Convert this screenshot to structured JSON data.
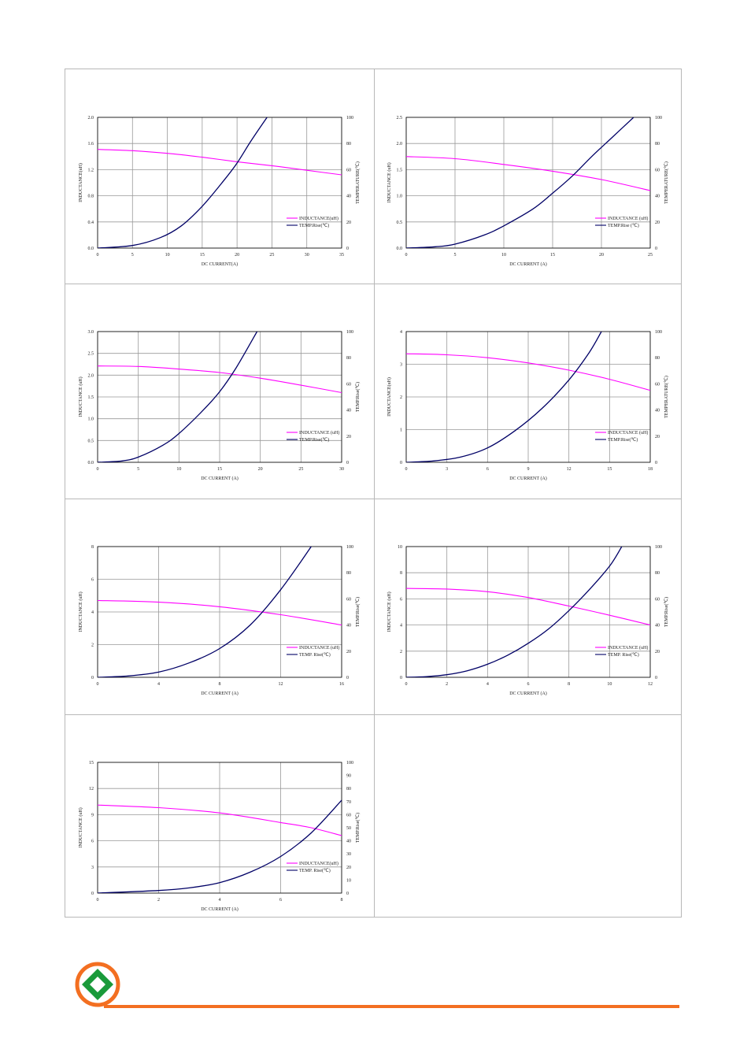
{
  "colors": {
    "inductance": "#ff00ff",
    "temp": "#000066",
    "grid": "#999999",
    "footer_rule": "#f36f21",
    "logo_ring": "#f36f21",
    "logo_mark": "#1a9a3a"
  },
  "chart_data": [
    {
      "type": "line",
      "xlabel": "DC CURRENT(A)",
      "ylabel": "INDUCTANCE(uH)",
      "y2label": "TEMPERATURE(℃)",
      "xlim": [
        0,
        35
      ],
      "xticks": [
        "0",
        "5",
        "10",
        "15",
        "20",
        "25",
        "30",
        "35"
      ],
      "ylim": [
        0,
        2.0
      ],
      "yticks": [
        "0.0",
        "0.4",
        "0.8",
        "1.2",
        "1.6",
        "2.0"
      ],
      "y2lim": [
        0,
        100
      ],
      "y2ticks": [
        "0",
        "20",
        "40",
        "60",
        "80",
        "100"
      ],
      "legend": "bottom-right",
      "series": [
        {
          "name": "INDUCTANCE(uH)",
          "axis": "left",
          "x": [
            0,
            5,
            10,
            15,
            20,
            25,
            30,
            35
          ],
          "values": [
            1.51,
            1.49,
            1.45,
            1.39,
            1.32,
            1.26,
            1.19,
            1.12
          ]
        },
        {
          "name": "TEMP.Rise(℃)",
          "axis": "right",
          "x": [
            0,
            5,
            9,
            12,
            15,
            18,
            20,
            22,
            24.3
          ],
          "values": [
            0,
            2,
            8,
            17,
            32,
            51,
            65,
            82,
            100
          ]
        }
      ]
    },
    {
      "type": "line",
      "xlabel": "DC CURRENT (A)",
      "ylabel": "INDUCTANCE (uH)",
      "y2label": "TEMPERATURE(℃)",
      "xlim": [
        0,
        25
      ],
      "xticks": [
        "0",
        "5",
        "10",
        "15",
        "20",
        "25"
      ],
      "ylim": [
        0,
        2.5
      ],
      "yticks": [
        "0.0",
        "0.5",
        "1.0",
        "1.5",
        "2.0",
        "2.5"
      ],
      "y2lim": [
        0,
        100
      ],
      "y2ticks": [
        "0",
        "20",
        "40",
        "60",
        "80",
        "100"
      ],
      "legend": "bottom-right",
      "series": [
        {
          "name": "INDUCTANCE (uH)",
          "axis": "left",
          "x": [
            0,
            5,
            10,
            15,
            20,
            25
          ],
          "values": [
            1.75,
            1.71,
            1.6,
            1.47,
            1.31,
            1.1
          ]
        },
        {
          "name": "TEMP.Rise (℃)",
          "axis": "right",
          "x": [
            0,
            3,
            5,
            8,
            10,
            13,
            15,
            17,
            19,
            21,
            23.3
          ],
          "values": [
            0,
            1,
            3,
            10,
            17,
            30,
            42,
            55,
            70,
            84,
            100
          ]
        }
      ]
    },
    {
      "type": "line",
      "xlabel": "DC CURRENT (A)",
      "ylabel": "INDUCTANCE (uH)",
      "y2label": "TEMP.Rise(℃)",
      "xlim": [
        0,
        30
      ],
      "xticks": [
        "0",
        "5",
        "10",
        "15",
        "20",
        "25",
        "30"
      ],
      "ylim": [
        0,
        3.0
      ],
      "yticks": [
        "0.0",
        "0.5",
        "1.0",
        "1.5",
        "2.0",
        "2.5",
        "3.0"
      ],
      "y2lim": [
        0,
        100
      ],
      "y2ticks": [
        "0",
        "20",
        "40",
        "60",
        "80",
        "100"
      ],
      "legend": "bottom-right",
      "series": [
        {
          "name": "INDUCTANCE (uH)",
          "axis": "left",
          "x": [
            0,
            5,
            10,
            15,
            20,
            25,
            30
          ],
          "values": [
            2.21,
            2.2,
            2.14,
            2.06,
            1.93,
            1.77,
            1.6
          ]
        },
        {
          "name": "TEMP.Rise(℃)",
          "axis": "right",
          "x": [
            0,
            3,
            5,
            8,
            10,
            13,
            15,
            17,
            19.6
          ],
          "values": [
            0,
            1,
            4,
            13,
            22,
            40,
            54,
            72,
            100
          ]
        }
      ]
    },
    {
      "type": "line",
      "xlabel": "DC CURRENT (A)",
      "ylabel": "INDUCTANCE(uH)",
      "y2label": "TEMPERATURE(℃)",
      "xlim": [
        0,
        18
      ],
      "xticks": [
        "0",
        "3",
        "6",
        "9",
        "12",
        "15",
        "18"
      ],
      "ylim": [
        0,
        4
      ],
      "yticks": [
        "0",
        "1",
        "2",
        "3",
        "4"
      ],
      "y2lim": [
        0,
        100
      ],
      "y2ticks": [
        "0",
        "20",
        "40",
        "60",
        "80",
        "100"
      ],
      "legend": "bottom-right",
      "series": [
        {
          "name": "INDUCTANCE (uH)",
          "axis": "left",
          "x": [
            0,
            3,
            6,
            9,
            12,
            15,
            18
          ],
          "values": [
            3.32,
            3.29,
            3.2,
            3.04,
            2.82,
            2.54,
            2.2
          ]
        },
        {
          "name": "TEMP.Rise(℃)",
          "axis": "right",
          "x": [
            0,
            2,
            4,
            6,
            8,
            10,
            12,
            13.5,
            14.4
          ],
          "values": [
            0,
            1,
            4,
            11,
            24,
            41,
            63,
            84,
            100
          ]
        }
      ]
    },
    {
      "type": "line",
      "xlabel": "DC CURRENT (A)",
      "ylabel": "INDUCTANCE (uH)",
      "y2label": "TEMP.Rise(℃)",
      "xlim": [
        0,
        16
      ],
      "xticks": [
        "0",
        "4",
        "8",
        "12",
        "16"
      ],
      "ylim": [
        0,
        8
      ],
      "yticks": [
        "0",
        "2",
        "4",
        "6",
        "8"
      ],
      "y2lim": [
        0,
        100
      ],
      "y2ticks": [
        "0",
        "20",
        "40",
        "60",
        "80",
        "100"
      ],
      "legend": "bottom-right",
      "series": [
        {
          "name": "INDUCTANCE (uH)",
          "axis": "left",
          "x": [
            0,
            4,
            8,
            12,
            16
          ],
          "values": [
            4.7,
            4.6,
            4.32,
            3.83,
            3.2
          ]
        },
        {
          "name": "TEMP. Rise(℃)",
          "axis": "right",
          "x": [
            0,
            2,
            4,
            6,
            8,
            10,
            12,
            14,
            13.9
          ],
          "values": [
            0,
            1,
            4,
            11,
            22,
            40,
            67,
            100,
            100
          ]
        }
      ]
    },
    {
      "type": "line",
      "xlabel": "DC CURRENT (A)",
      "ylabel": "INDUCTANCE (uH)",
      "y2label": "TEMP.Rise(℃)",
      "xlim": [
        0,
        12
      ],
      "xticks": [
        "0",
        "2",
        "4",
        "6",
        "8",
        "10",
        "12"
      ],
      "ylim": [
        0,
        10
      ],
      "yticks": [
        "0",
        "2",
        "4",
        "6",
        "8",
        "10"
      ],
      "y2lim": [
        0,
        100
      ],
      "y2ticks": [
        "0",
        "20",
        "40",
        "60",
        "80",
        "100"
      ],
      "legend": "bottom-right",
      "series": [
        {
          "name": "INDUCTANCE (uH)",
          "axis": "left",
          "x": [
            0,
            2,
            4,
            6,
            8,
            10,
            12
          ],
          "values": [
            6.8,
            6.75,
            6.55,
            6.1,
            5.45,
            4.75,
            4.0
          ]
        },
        {
          "name": "TEMP. Rise(℃)",
          "axis": "right",
          "x": [
            0,
            1,
            2,
            3,
            4,
            5,
            6,
            7,
            8,
            9,
            10,
            10.6
          ],
          "values": [
            0,
            0.5,
            2,
            5,
            10,
            17,
            26,
            37,
            51,
            67,
            85,
            100
          ]
        }
      ]
    },
    {
      "type": "line",
      "xlabel": "DC CURRENT (A)",
      "ylabel": "INDUCTANCE (uH)",
      "y2label": "TEMP.Rise(℃)",
      "xlim": [
        0,
        8
      ],
      "xticks": [
        "0",
        "2",
        "4",
        "6",
        "8"
      ],
      "ylim": [
        0,
        15
      ],
      "yticks": [
        "0",
        "3",
        "6",
        "9",
        "12",
        "15"
      ],
      "y2lim": [
        0,
        100
      ],
      "y2ticks": [
        "0",
        "10",
        "20",
        "30",
        "40",
        "50",
        "60",
        "70",
        "80",
        "90",
        "100"
      ],
      "legend": "bottom-right",
      "series": [
        {
          "name": "INDUCTANCE(uH)",
          "axis": "left",
          "x": [
            0,
            2,
            4,
            6,
            7,
            8
          ],
          "values": [
            10.1,
            9.8,
            9.2,
            8.1,
            7.5,
            6.6
          ]
        },
        {
          "name": "TEMP. Rise(℃)",
          "axis": "right",
          "x": [
            0,
            2,
            3,
            4,
            5,
            6,
            7,
            8
          ],
          "values": [
            0,
            2,
            4,
            8,
            16,
            28,
            46,
            71
          ]
        }
      ]
    }
  ]
}
